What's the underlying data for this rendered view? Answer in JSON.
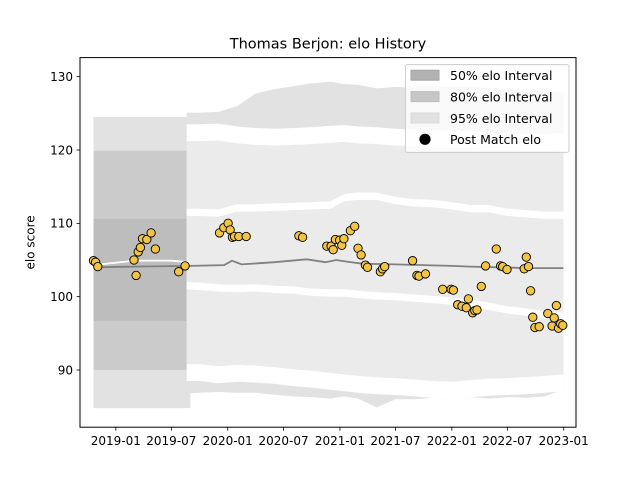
{
  "chart_data": {
    "type": "line",
    "title": "Thomas Berjon: elo History",
    "xlabel": "",
    "ylabel": "elo score",
    "ylim": [
      82.2,
      132.6
    ],
    "xlim": [
      "2018-09-06",
      "2023-02-10"
    ],
    "x_ticks": [
      "2019-01",
      "2019-07",
      "2020-01",
      "2020-07",
      "2021-01",
      "2021-07",
      "2022-01",
      "2022-07",
      "2023-01"
    ],
    "y_ticks": [
      90,
      100,
      110,
      120,
      130
    ],
    "grid": false,
    "legend_position": "upper-right",
    "legend": [
      {
        "label": "50% elo Interval",
        "color": "#b2b2b2"
      },
      {
        "label": "80% elo Interval",
        "color": "#c6c6c6"
      },
      {
        "label": "95% elo Interval",
        "color": "#e2e2e2"
      },
      {
        "label": "Post Match elo",
        "color": "#000000"
      }
    ],
    "prior_band": {
      "x": [
        "2018-10-20",
        "2019-09-01"
      ],
      "p95": [
        84.8,
        124.5
      ],
      "p80": [
        90.0,
        119.9
      ],
      "p50": [
        96.7,
        110.6
      ]
    },
    "mean_line": {
      "color": "#808080",
      "x": [
        "2018-10-20",
        "2019-03-01",
        "2019-09-01",
        "2019-12-20",
        "2020-01-15",
        "2020-02-15",
        "2020-06-01",
        "2020-09-15",
        "2020-11-15",
        "2020-12-20",
        "2021-01-20",
        "2021-03-15",
        "2021-07-01",
        "2021-10-01",
        "2022-01-01",
        "2022-03-01",
        "2022-06-01",
        "2022-09-01",
        "2022-12-31"
      ],
      "y": [
        104.0,
        104.1,
        104.2,
        104.3,
        104.9,
        104.4,
        104.7,
        105.1,
        104.7,
        105.0,
        104.8,
        104.5,
        104.4,
        104.3,
        104.2,
        104.1,
        104.0,
        103.9,
        103.9
      ]
    },
    "recent_line": {
      "color": "#ffffff",
      "x": [
        "2018-10-20",
        "2019-03-01",
        "2019-07-01",
        "2019-09-01"
      ],
      "y": [
        104.3,
        104.9,
        104.9,
        104.7
      ]
    },
    "band_95": {
      "color": "#e2e2e2",
      "x": [
        "2019-08-20",
        "2019-10-01",
        "2019-12-01",
        "2020-02-01",
        "2020-04-01",
        "2020-06-01",
        "2020-08-01",
        "2020-10-01",
        "2020-12-01",
        "2021-01-15",
        "2021-03-01",
        "2021-05-01",
        "2021-07-01",
        "2021-09-01",
        "2021-11-01",
        "2022-01-01",
        "2022-03-01",
        "2022-05-01",
        "2022-07-01",
        "2022-09-01",
        "2022-11-01",
        "2022-12-31"
      ],
      "upper": [
        125.1,
        125.1,
        125.2,
        126.0,
        127.7,
        128.3,
        128.7,
        129.1,
        129.3,
        129.0,
        128.9,
        128.4,
        128.6,
        128.5,
        128.7,
        128.6,
        128.6,
        128.5,
        128.3,
        128.1,
        128.0,
        127.8
      ],
      "lower": [
        86.8,
        86.9,
        87.0,
        86.9,
        86.9,
        86.6,
        86.4,
        86.3,
        86.1,
        86.4,
        86.1,
        84.9,
        86.0,
        86.0,
        86.2,
        86.1,
        86.3,
        86.1,
        86.3,
        86.2,
        86.4,
        87.3
      ]
    },
    "band_80": {
      "color": "#ebebeb",
      "x": [
        "2019-08-20",
        "2019-10-01",
        "2019-12-01",
        "2020-02-01",
        "2020-04-01",
        "2020-06-01",
        "2020-08-01",
        "2020-10-01",
        "2020-12-01",
        "2021-01-15",
        "2021-03-01",
        "2021-05-01",
        "2021-07-01",
        "2021-09-01",
        "2021-11-01",
        "2022-01-01",
        "2022-03-01",
        "2022-05-01",
        "2022-07-01",
        "2022-09-01",
        "2022-11-01",
        "2022-12-31"
      ],
      "upper": [
        121.2,
        121.2,
        121.3,
        120.9,
        120.7,
        120.6,
        120.7,
        120.8,
        121.0,
        121.1,
        120.9,
        120.8,
        120.6,
        120.5,
        120.4,
        120.3,
        120.3,
        120.0,
        120.0,
        119.9,
        119.9,
        120.0
      ],
      "lower": [
        90.8,
        90.8,
        90.5,
        90.7,
        90.6,
        90.4,
        90.1,
        89.9,
        89.6,
        89.4,
        89.2,
        89.0,
        88.9,
        88.7,
        88.5,
        88.4,
        88.6,
        88.8,
        88.9,
        89.0,
        89.2,
        89.4
      ]
    },
    "band_50": {
      "color": "#ebebeb",
      "x": [
        "2019-08-20",
        "2019-10-01",
        "2019-12-01",
        "2020-02-01",
        "2020-04-01",
        "2020-06-01",
        "2020-08-01",
        "2020-10-01",
        "2020-12-01",
        "2021-01-15",
        "2021-03-01",
        "2021-05-01",
        "2021-07-01",
        "2021-09-01",
        "2021-11-01",
        "2022-01-01",
        "2022-03-01",
        "2022-05-01",
        "2022-07-01",
        "2022-09-01",
        "2022-11-01",
        "2022-12-31"
      ],
      "upper": [
        111.0,
        111.0,
        110.9,
        111.6,
        111.6,
        111.7,
        111.8,
        111.9,
        112.0,
        113.0,
        113.2,
        113.2,
        112.6,
        112.3,
        112.2,
        111.9,
        111.5,
        111.5,
        111.0,
        110.8,
        110.6,
        110.6
      ],
      "lower": [
        102.0,
        101.9,
        101.7,
        101.6,
        101.7,
        101.5,
        101.4,
        101.1,
        101.0,
        101.0,
        100.8,
        100.6,
        100.5,
        100.3,
        100.1,
        99.9,
        99.6,
        99.2,
        98.7,
        98.4,
        98.0,
        97.8
      ]
    },
    "points": {
      "name": "Post Match elo",
      "color": "#f2c443",
      "x": [
        "2018-10-20",
        "2018-10-27",
        "2018-11-03",
        "2019-03-01",
        "2019-03-08",
        "2019-03-15",
        "2019-03-22",
        "2019-03-29",
        "2019-04-12",
        "2019-04-26",
        "2019-05-10",
        "2019-07-25",
        "2019-08-15",
        "2019-12-05",
        "2019-12-19",
        "2020-01-02",
        "2020-01-09",
        "2020-01-16",
        "2020-01-23",
        "2020-02-06",
        "2020-03-01",
        "2020-08-20",
        "2020-09-01",
        "2020-11-19",
        "2020-12-03",
        "2020-12-10",
        "2020-12-17",
        "2020-12-31",
        "2021-01-07",
        "2021-01-14",
        "2021-02-04",
        "2021-02-18",
        "2021-03-01",
        "2021-03-11",
        "2021-03-25",
        "2021-04-01",
        "2021-05-13",
        "2021-05-20",
        "2021-05-27",
        "2021-08-26",
        "2021-09-09",
        "2021-09-16",
        "2021-10-07",
        "2021-12-02",
        "2021-12-30",
        "2022-01-06",
        "2022-01-20",
        "2022-02-03",
        "2022-02-17",
        "2022-02-24",
        "2022-03-10",
        "2022-03-17",
        "2022-03-24",
        "2022-04-07",
        "2022-04-21",
        "2022-05-26",
        "2022-06-09",
        "2022-06-16",
        "2022-06-30",
        "2022-08-25",
        "2022-09-01",
        "2022-09-08",
        "2022-09-15",
        "2022-09-22",
        "2022-09-29",
        "2022-10-13",
        "2022-11-10",
        "2022-11-24",
        "2022-12-01",
        "2022-12-08",
        "2022-12-15",
        "2022-12-22",
        "2022-12-29"
      ],
      "y": [
        104.9,
        104.7,
        104.1,
        105.0,
        102.9,
        106.1,
        106.7,
        107.9,
        107.8,
        108.7,
        106.5,
        103.4,
        104.2,
        108.7,
        109.4,
        110.0,
        109.1,
        108.1,
        108.2,
        108.2,
        108.2,
        108.3,
        108.1,
        106.9,
        106.9,
        106.4,
        107.8,
        107.7,
        107.0,
        107.9,
        109.0,
        109.6,
        106.6,
        105.7,
        104.3,
        104.0,
        103.4,
        103.8,
        104.1,
        104.9,
        102.9,
        102.8,
        103.1,
        101.0,
        101.0,
        100.9,
        98.9,
        98.7,
        98.5,
        99.7,
        97.8,
        98.1,
        98.2,
        101.4,
        104.2,
        106.5,
        104.2,
        104.1,
        103.7,
        103.8,
        105.4,
        104.1,
        100.8,
        97.2,
        95.8,
        95.9,
        97.7,
        96.0,
        97.1,
        98.8,
        95.7,
        96.3,
        96.1
      ]
    }
  }
}
